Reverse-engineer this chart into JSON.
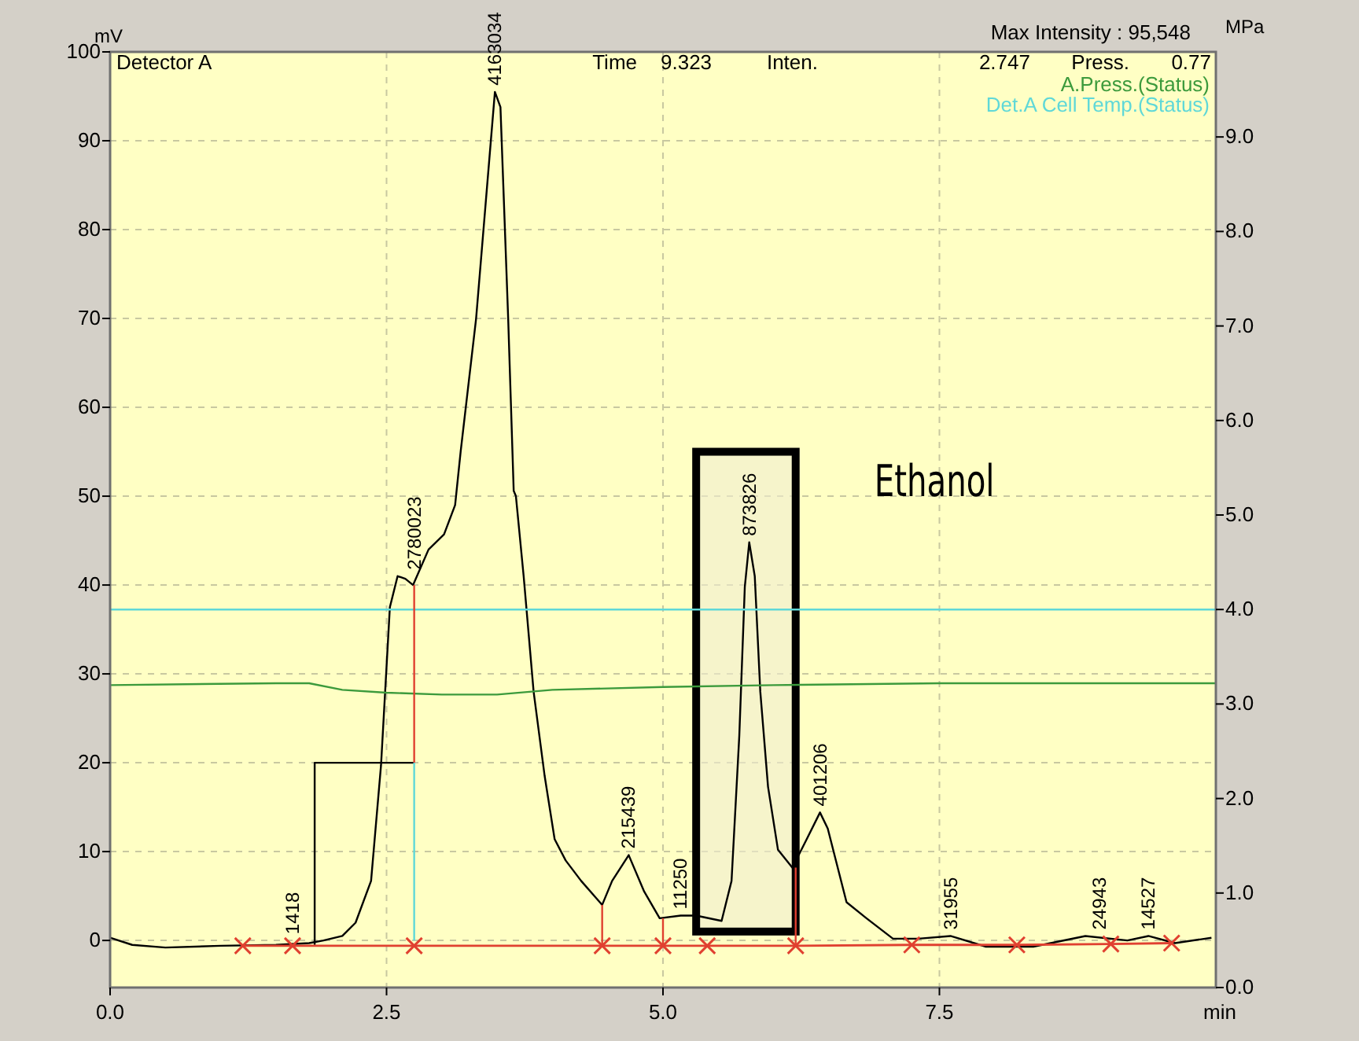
{
  "chart_data": {
    "type": "line",
    "xlabel": "min",
    "ylabel": "mV",
    "y2label": "MPa",
    "xlim": [
      0,
      10
    ],
    "xticks": [
      {
        "value": 0,
        "label": "0.0"
      },
      {
        "value": 2.5,
        "label": "2.5"
      },
      {
        "value": 5,
        "label": "5.0"
      },
      {
        "value": 7.5,
        "label": "7.5"
      }
    ],
    "ylim": [
      -5.3,
      100
    ],
    "yticks": [
      0,
      10,
      20,
      30,
      40,
      50,
      60,
      70,
      80,
      90,
      100
    ],
    "y2lim": [
      0,
      9.9
    ],
    "y2ticks": [
      {
        "value": 0,
        "label": "0.0"
      },
      {
        "value": 1,
        "label": "1.0"
      },
      {
        "value": 2,
        "label": "2.0"
      },
      {
        "value": 3,
        "label": "3.0"
      },
      {
        "value": 4,
        "label": "4.0"
      },
      {
        "value": 5,
        "label": "5.0"
      },
      {
        "value": 6,
        "label": "6.0"
      },
      {
        "value": 7,
        "label": "7.0"
      },
      {
        "value": 8,
        "label": "8.0"
      },
      {
        "value": 9,
        "label": "9.0"
      }
    ],
    "grid": true,
    "legend": "top right",
    "line_style": "solid",
    "series": [
      {
        "color": "#000000",
        "x": [
          0,
          0.2,
          0.5,
          1.0,
          1.5,
          1.8,
          1.93,
          2.1,
          2.22,
          2.36,
          2.45,
          2.53,
          2.6,
          2.67,
          2.74,
          2.88,
          3.02,
          3.12,
          3.17,
          3.31,
          3.48,
          3.53,
          3.6,
          3.65,
          3.67,
          3.74,
          3.83,
          3.93,
          4.02,
          4.12,
          4.26,
          4.45,
          4.54,
          4.69,
          4.83,
          4.97,
          5.16,
          5.3,
          5.53,
          5.62,
          5.69,
          5.74,
          5.78,
          5.83,
          5.88,
          5.95,
          6.04,
          6.17,
          6.3,
          6.42,
          6.49,
          6.66,
          6.84,
          7.08,
          7.31,
          7.6,
          7.92,
          8.35,
          8.82,
          9.2,
          9.39,
          9.63,
          9.96
        ],
        "values": [
          0.3,
          -0.5,
          -0.8,
          -0.6,
          -0.5,
          -0.3,
          0,
          0.5,
          2,
          6.7,
          19.7,
          37.5,
          41,
          40.7,
          40,
          44,
          45.7,
          49,
          55,
          70,
          95.5,
          93.8,
          70,
          50.6,
          50,
          41,
          28,
          18.5,
          11.4,
          9,
          6.7,
          4,
          6.7,
          9.6,
          5.5,
          2.5,
          2.8,
          2.8,
          2.2,
          6.7,
          23,
          39.8,
          44.8,
          41,
          28,
          17.3,
          10.2,
          8.2,
          11.4,
          14.4,
          12.6,
          4.3,
          2.5,
          0.2,
          0.2,
          0.5,
          -0.7,
          -0.7,
          0.5,
          0,
          0.5,
          -0.3,
          0.3
        ]
      },
      {
        "name": "A.Press.(Status)",
        "color": "#3c9a3c",
        "axis": "y2",
        "x": [
          0,
          1.5,
          1.8,
          2.1,
          2.5,
          3.0,
          3.5,
          4.0,
          5.0,
          6.0,
          7.5,
          8.5,
          10
        ],
        "values": [
          3.2,
          3.22,
          3.22,
          3.15,
          3.12,
          3.1,
          3.1,
          3.15,
          3.18,
          3.2,
          3.22,
          3.22,
          3.22
        ]
      },
      {
        "name": "Det.A Cell Temp.(Status)",
        "color": "#5fd8d8",
        "axis": "y2",
        "x": [
          0,
          10
        ],
        "values": [
          4.0,
          4.0
        ]
      },
      {
        "color": "#000000",
        "x": [
          1.85,
          1.85,
          2.75
        ],
        "values": [
          -0.5,
          20,
          20
        ]
      },
      {
        "color": "#e04030",
        "x": [
          2.75,
          2.75
        ],
        "values": [
          20,
          40
        ]
      },
      {
        "color": "#e04030",
        "x": [
          4.45,
          4.45
        ],
        "values": [
          -0.5,
          4
        ]
      },
      {
        "color": "#e04030",
        "x": [
          5.0,
          5.0
        ],
        "values": [
          -0.5,
          2.5
        ]
      },
      {
        "color": "#e04030",
        "x": [
          6.2,
          6.2
        ],
        "values": [
          -0.5,
          8.2
        ]
      },
      {
        "color": "#e04030",
        "marker": "cross",
        "x": [
          1.2,
          1.65,
          2.75,
          4.45,
          5.0,
          5.4,
          6.2,
          7.25,
          8.2,
          9.05,
          9.6
        ],
        "values": [
          -0.6,
          -0.6,
          -0.6,
          -0.6,
          -0.6,
          -0.6,
          -0.6,
          -0.5,
          -0.5,
          -0.4,
          -0.3
        ]
      },
      {
        "color": "#5fd8d8",
        "x": [
          2.75,
          2.75
        ],
        "values": [
          0,
          20
        ]
      }
    ],
    "bands": [
      {
        "axis": "x",
        "from": 5.3,
        "to": 6.2,
        "label": "Ethanol",
        "color": "#000000"
      }
    ],
    "annotations": [
      "Detector A",
      "Time",
      "9.323",
      "Inten.",
      "2.747",
      "Press.",
      "0.77",
      "Max Intensity : 95,548",
      {
        "text": "1418",
        "x": 1.65,
        "y": 0
      },
      {
        "text": "2780023",
        "x": 2.75,
        "y": 41
      },
      {
        "text": "4163034",
        "x": 3.48,
        "y": 95.5
      },
      {
        "text": "215439",
        "x": 4.69,
        "y": 9.6
      },
      {
        "text": "11250",
        "x": 5.16,
        "y": 2.8
      },
      {
        "text": "873826",
        "x": 5.78,
        "y": 44.8
      },
      {
        "text": "401206",
        "x": 6.42,
        "y": 14.4
      },
      {
        "text": "31955",
        "x": 7.6,
        "y": 0.5
      },
      {
        "text": "24943",
        "x": 8.95,
        "y": 0.5
      },
      {
        "text": "14527",
        "x": 9.39,
        "y": 0.5
      }
    ]
  }
}
